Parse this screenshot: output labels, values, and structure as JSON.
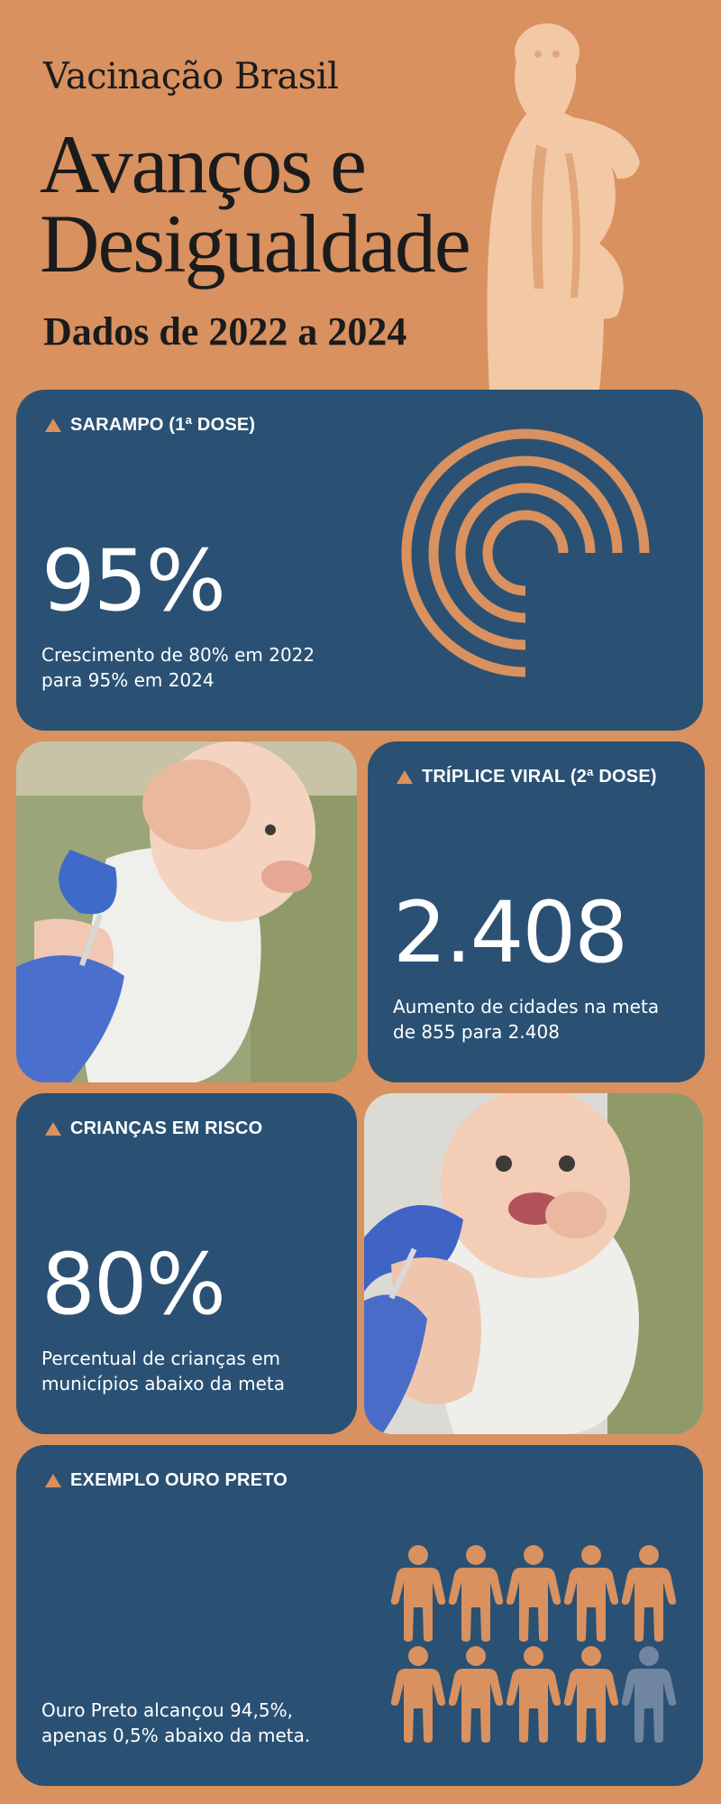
{
  "header": {
    "subtitle": "Vacinação Brasil",
    "title_line1": "Avanços e",
    "title_line2": "Desigualdade",
    "date_range": "Dados de 2022 a 2024"
  },
  "cards": {
    "sarampo": {
      "label": "SARAMPO (1ª DOSE)",
      "value": "95%",
      "desc_line1": "Crescimento de 80% em 2022",
      "desc_line2": "para 95% em 2024"
    },
    "triplice": {
      "label": "TRÍPLICE VIRAL (2ª DOSE)",
      "value": "2.408",
      "desc_line1": "Aumento de cidades na meta",
      "desc_line2": "de 855 para 2.408"
    },
    "criancas": {
      "label": "CRIANÇAS EM RISCO",
      "value": "80%",
      "desc_line1": "Percentual de crianças em",
      "desc_line2": "municípios abaixo da meta"
    },
    "ouro_preto": {
      "label": "EXEMPLO OURO PRETO",
      "desc_line1": "Ouro Preto alcançou 94,5%,",
      "desc_line2": "apenas 0,5% abaixo da meta.",
      "people_total": 10,
      "people_highlighted": 9
    }
  },
  "colors": {
    "background": "#d8915f",
    "card": "#2a5174",
    "accent": "#d8915f",
    "muted_person": "#6f85a0",
    "statue": "#f2c8a5"
  },
  "icons": [
    "triangle-icon",
    "concentric-arcs-graphic",
    "person-icon",
    "statue-illustration"
  ]
}
